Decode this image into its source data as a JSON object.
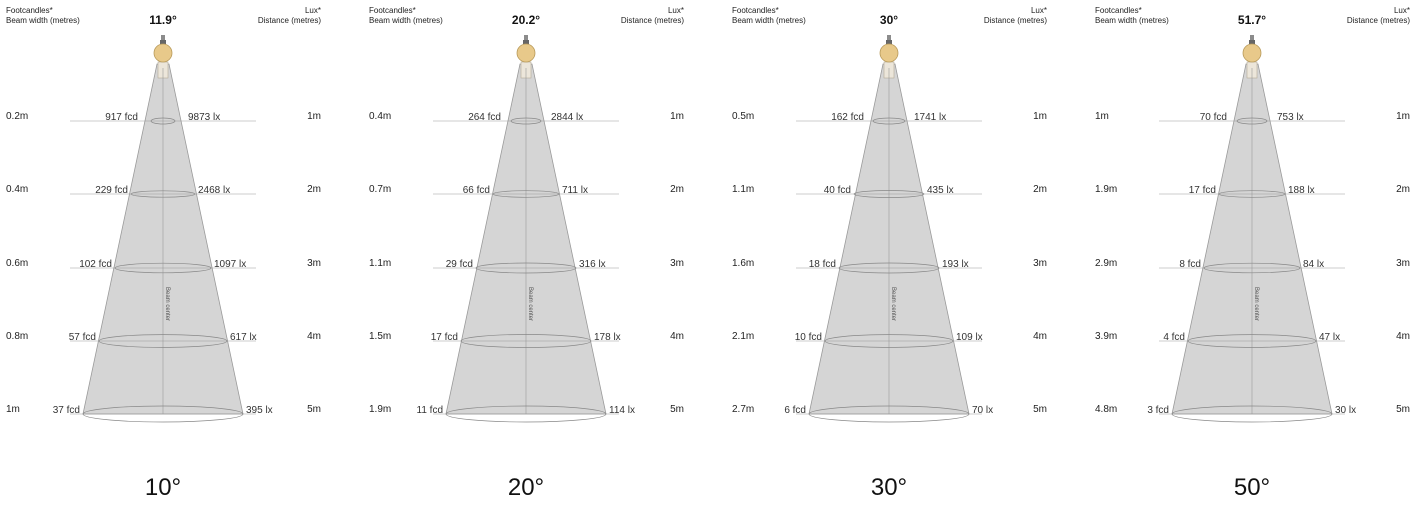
{
  "labels": {
    "footcandles": "Footcandles*",
    "beam_width": "Beam width (metres)",
    "lux": "Lux*",
    "distance": "Distance (metres)",
    "beam_center": "Beam center"
  },
  "colors": {
    "cone_fill": "#d5d5d5",
    "cone_stroke": "#9a9a9a",
    "bulb": "#e8c98a",
    "guide_line": "#9a9a9a"
  },
  "diagrams": [
    {
      "title": "11.9°",
      "big_label": "10°",
      "rows": [
        {
          "distance": "1m",
          "width": "0.2m",
          "fcd": "917 fcd",
          "lux": "9873 lx"
        },
        {
          "distance": "2m",
          "width": "0.4m",
          "fcd": "229 fcd",
          "lux": "2468 lx"
        },
        {
          "distance": "3m",
          "width": "0.6m",
          "fcd": "102 fcd",
          "lux": "1097 lx"
        },
        {
          "distance": "4m",
          "width": "0.8m",
          "fcd": "57 fcd",
          "lux": "617 lx"
        },
        {
          "distance": "5m",
          "width": "1m",
          "fcd": "37 fcd",
          "lux": "395 lx"
        }
      ]
    },
    {
      "title": "20.2°",
      "big_label": "20°",
      "rows": [
        {
          "distance": "1m",
          "width": "0.4m",
          "fcd": "264 fcd",
          "lux": "2844 lx"
        },
        {
          "distance": "2m",
          "width": "0.7m",
          "fcd": "66 fcd",
          "lux": "711 lx"
        },
        {
          "distance": "3m",
          "width": "1.1m",
          "fcd": "29 fcd",
          "lux": "316 lx"
        },
        {
          "distance": "4m",
          "width": "1.5m",
          "fcd": "17 fcd",
          "lux": "178 lx"
        },
        {
          "distance": "5m",
          "width": "1.9m",
          "fcd": "11 fcd",
          "lux": "114 lx"
        }
      ]
    },
    {
      "title": "30°",
      "big_label": "30°",
      "rows": [
        {
          "distance": "1m",
          "width": "0.5m",
          "fcd": "162 fcd",
          "lux": "1741 lx"
        },
        {
          "distance": "2m",
          "width": "1.1m",
          "fcd": "40 fcd",
          "lux": "435 lx"
        },
        {
          "distance": "3m",
          "width": "1.6m",
          "fcd": "18 fcd",
          "lux": "193 lx"
        },
        {
          "distance": "4m",
          "width": "2.1m",
          "fcd": "10 fcd",
          "lux": "109 lx"
        },
        {
          "distance": "5m",
          "width": "2.7m",
          "fcd": "6 fcd",
          "lux": "70 lx"
        }
      ]
    },
    {
      "title": "51.7°",
      "big_label": "50°",
      "rows": [
        {
          "distance": "1m",
          "width": "1m",
          "fcd": "70 fcd",
          "lux": "753 lx"
        },
        {
          "distance": "2m",
          "width": "1.9m",
          "fcd": "17 fcd",
          "lux": "188 lx"
        },
        {
          "distance": "3m",
          "width": "2.9m",
          "fcd": "8 fcd",
          "lux": "84 lx"
        },
        {
          "distance": "4m",
          "width": "3.9m",
          "fcd": "4 fcd",
          "lux": "47 lx"
        },
        {
          "distance": "5m",
          "width": "4.8m",
          "fcd": "3 fcd",
          "lux": "30 lx"
        }
      ]
    }
  ]
}
